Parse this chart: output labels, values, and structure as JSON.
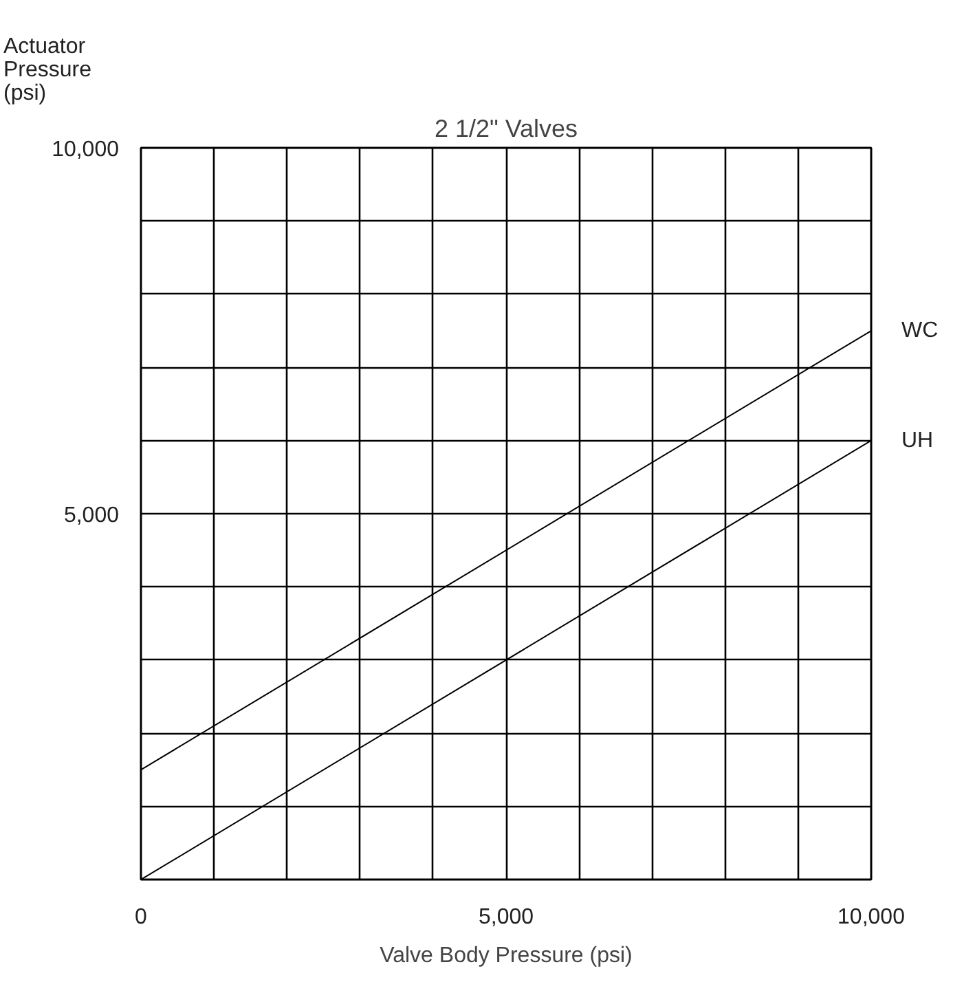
{
  "chart_data": {
    "type": "line",
    "title": "2 1/2\" Valves",
    "xlabel": "Valve Body Pressure (psi)",
    "ylabel": "Actuator Pressure (psi)",
    "x": [
      0,
      10000
    ],
    "series": [
      {
        "name": "WC",
        "color": "#000000",
        "values": [
          1500,
          7500
        ]
      },
      {
        "name": "UH",
        "color": "#000000",
        "values": [
          0,
          6000
        ]
      }
    ],
    "xlim": [
      0,
      10000
    ],
    "ylim": [
      0,
      10000
    ],
    "xticks": [
      0,
      {
        "value": 1000,
        "label": null
      },
      {
        "value": 2000,
        "label": null
      },
      {
        "value": 3000,
        "label": null
      },
      {
        "value": 4000,
        "label": null
      },
      {
        "value": 5000,
        "label": "5,000"
      },
      {
        "value": 6000,
        "label": null
      },
      {
        "value": 7000,
        "label": null
      },
      {
        "value": 8000,
        "label": null
      },
      {
        "value": 9000,
        "label": null
      },
      {
        "value": 10000,
        "label": "10,000"
      }
    ],
    "yticks": [
      {
        "value": 0,
        "label": null
      },
      {
        "value": 1000,
        "label": null
      },
      {
        "value": 2000,
        "label": null
      },
      {
        "value": 3000,
        "label": null
      },
      {
        "value": 4000,
        "label": null
      },
      {
        "value": 5000,
        "label": "5,000"
      },
      {
        "value": 6000,
        "label": null
      },
      {
        "value": 7000,
        "label": null
      },
      {
        "value": 8000,
        "label": null
      },
      {
        "value": 9000,
        "label": null
      },
      {
        "value": 10000,
        "label": "10,000"
      }
    ],
    "grid": true,
    "marker": "none",
    "line_style": "solid"
  }
}
